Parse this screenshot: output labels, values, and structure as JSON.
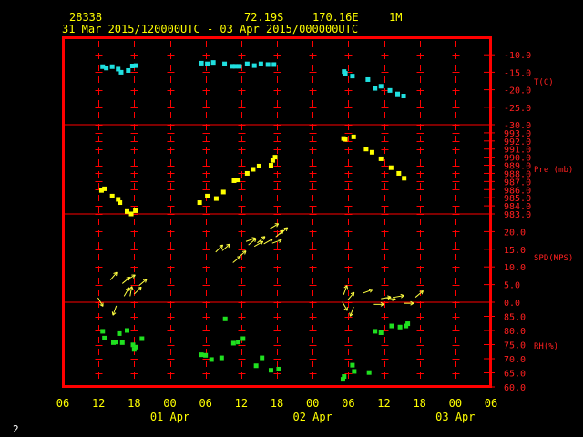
{
  "header": {
    "station_id": "28338",
    "lat": "72.19S",
    "lon": "170.16E",
    "interval": "1M",
    "time_range": "31 Mar 2015/120000UTC - 03 Apr 2015/000000UTC"
  },
  "page_number": "2",
  "colors": {
    "background": "#000000",
    "frame": "#ff0000",
    "grid": "#ff0000",
    "temperature": "#20e0e0",
    "pressure": "#ffff00",
    "wind": "#ffff40",
    "rh": "#20e020",
    "header_text": "#ffff00",
    "axis_text": "#ffff00",
    "right_labels": "#ff2020"
  },
  "chart_data": {
    "type": "scatter",
    "x_units": "hours after 31 Mar 2015 06 UTC",
    "x_range": [
      0,
      72
    ],
    "x_tick_labels": [
      "06",
      "12",
      "18",
      "00",
      "06",
      "12",
      "18",
      "00",
      "06",
      "12",
      "18",
      "00",
      "06"
    ],
    "date_labels": [
      "01 Apr",
      "02 Apr",
      "03 Apr"
    ],
    "panels": [
      {
        "name": "T(C)",
        "ylim": [
          -30,
          -5
        ],
        "ticks": [
          "-10.0",
          "-15.0",
          "-20.0",
          "-25.0",
          "-30.0"
        ],
        "tick_values": [
          -10,
          -15,
          -20,
          -25,
          -30
        ],
        "marker": "square",
        "color": "#20e0e0",
        "points": [
          [
            6.7,
            -13.4
          ],
          [
            7.3,
            -13.8
          ],
          [
            8.3,
            -13.4
          ],
          [
            9.3,
            -14.1
          ],
          [
            9.8,
            -15.0
          ],
          [
            11.0,
            -14.5
          ],
          [
            11.7,
            -13.2
          ],
          [
            12.3,
            -13.1
          ],
          [
            23.3,
            -12.4
          ],
          [
            24.3,
            -12.6
          ],
          [
            25.3,
            -12.2
          ],
          [
            27.2,
            -12.6
          ],
          [
            28.5,
            -13.3
          ],
          [
            29.0,
            -13.3
          ],
          [
            29.7,
            -13.3
          ],
          [
            31.0,
            -12.6
          ],
          [
            32.2,
            -13.1
          ],
          [
            33.3,
            -12.6
          ],
          [
            34.5,
            -12.8
          ],
          [
            35.5,
            -12.8
          ],
          [
            47.3,
            -14.8
          ],
          [
            47.5,
            -15.3
          ],
          [
            48.7,
            -16.1
          ],
          [
            51.3,
            -17.1
          ],
          [
            52.5,
            -19.6
          ],
          [
            53.5,
            -19.0
          ],
          [
            55.0,
            -20.2
          ],
          [
            56.3,
            -21.2
          ],
          [
            57.3,
            -21.8
          ]
        ]
      },
      {
        "name": "Pre (mb)",
        "ylim": [
          983,
          994
        ],
        "ticks": [
          "993.0",
          "992.0",
          "991.0",
          "990.0",
          "989.0",
          "988.0",
          "987.0",
          "986.0",
          "985.0",
          "984.0",
          "983.0"
        ],
        "tick_values": [
          993,
          992,
          991,
          990,
          989,
          988,
          987,
          986,
          985,
          984,
          983
        ],
        "marker": "square",
        "color": "#ffff00",
        "points": [
          [
            6.5,
            985.9
          ],
          [
            7.0,
            986.1
          ],
          [
            8.3,
            985.2
          ],
          [
            9.3,
            984.8
          ],
          [
            9.6,
            984.4
          ],
          [
            10.8,
            983.3
          ],
          [
            11.5,
            983.0
          ],
          [
            12.2,
            983.4
          ],
          [
            23.0,
            984.4
          ],
          [
            24.3,
            985.2
          ],
          [
            25.8,
            984.9
          ],
          [
            27.0,
            985.7
          ],
          [
            28.8,
            987.1
          ],
          [
            29.5,
            987.2
          ],
          [
            31.0,
            988.0
          ],
          [
            32.0,
            988.5
          ],
          [
            33.0,
            988.9
          ],
          [
            35.0,
            989.0
          ],
          [
            35.3,
            989.6
          ],
          [
            35.7,
            990.0
          ],
          [
            47.2,
            992.3
          ],
          [
            47.5,
            992.2
          ],
          [
            48.9,
            992.5
          ],
          [
            51.0,
            991.0
          ],
          [
            52.0,
            990.6
          ],
          [
            53.5,
            989.8
          ],
          [
            55.2,
            988.7
          ],
          [
            56.5,
            988.0
          ],
          [
            57.4,
            987.4
          ]
        ]
      },
      {
        "name": "SPD(MPS)",
        "ylim": [
          0,
          25
        ],
        "ticks": [
          "20.0",
          "15.0",
          "10.0",
          "5.0",
          "0.0"
        ],
        "tick_values": [
          20,
          15,
          10,
          5,
          0
        ],
        "marker": "wind-arrow",
        "color": "#ffff40",
        "arrows": [
          [
            5.9,
            1.3,
            -60
          ],
          [
            8.0,
            6.3,
            50
          ],
          [
            9.0,
            -1.0,
            -110
          ],
          [
            10.0,
            5.3,
            40
          ],
          [
            10.3,
            1.7,
            60
          ],
          [
            10.7,
            6.3,
            30
          ],
          [
            11.3,
            1.7,
            80
          ],
          [
            12.0,
            2.3,
            45
          ],
          [
            12.8,
            4.7,
            40
          ],
          [
            25.7,
            14.2,
            45
          ],
          [
            26.8,
            14.6,
            40
          ],
          [
            28.6,
            11.2,
            40
          ],
          [
            29.5,
            12.7,
            40
          ],
          [
            30.8,
            17.2,
            20
          ],
          [
            31.2,
            16.2,
            40
          ],
          [
            32.2,
            15.8,
            30
          ],
          [
            32.7,
            16.8,
            40
          ],
          [
            33.8,
            16.5,
            30
          ],
          [
            34.8,
            20.8,
            30
          ],
          [
            35.2,
            16.7,
            20
          ],
          [
            35.8,
            18.5,
            40
          ],
          [
            36.5,
            19.3,
            40
          ],
          [
            47.0,
            0.1,
            -60
          ],
          [
            47.2,
            2.1,
            70
          ],
          [
            47.9,
            0.6,
            50
          ],
          [
            48.9,
            -1.3,
            -110
          ],
          [
            50.5,
            2.6,
            20
          ],
          [
            52.3,
            -0.6,
            0
          ],
          [
            53.5,
            1.0,
            10
          ],
          [
            54.3,
            1.3,
            -10
          ],
          [
            55.7,
            1.4,
            10
          ],
          [
            57.3,
            -0.3,
            0
          ],
          [
            59.3,
            1.4,
            40
          ]
        ]
      },
      {
        "name": "RH(%)",
        "ylim": [
          60,
          90
        ],
        "ticks": [
          "85.0",
          "80.0",
          "75.0",
          "70.0",
          "65.0",
          "60.0"
        ],
        "tick_values": [
          85,
          80,
          75,
          70,
          65,
          60
        ],
        "marker": "square",
        "color": "#20e020",
        "points": [
          [
            6.7,
            79.7
          ],
          [
            7.0,
            77.3
          ],
          [
            8.5,
            75.7
          ],
          [
            8.9,
            75.9
          ],
          [
            9.5,
            78.9
          ],
          [
            10.0,
            75.7
          ],
          [
            10.8,
            80.0
          ],
          [
            11.8,
            74.9
          ],
          [
            12.0,
            73.3
          ],
          [
            12.3,
            74.1
          ],
          [
            13.3,
            77.1
          ],
          [
            23.3,
            71.4
          ],
          [
            24.0,
            71.2
          ],
          [
            25.0,
            69.7
          ],
          [
            26.7,
            70.3
          ],
          [
            27.3,
            84.1
          ],
          [
            28.7,
            75.5
          ],
          [
            29.5,
            75.9
          ],
          [
            30.3,
            77.1
          ],
          [
            32.5,
            67.5
          ],
          [
            33.5,
            70.3
          ],
          [
            35.0,
            65.9
          ],
          [
            36.3,
            66.3
          ],
          [
            47.1,
            62.7
          ],
          [
            47.3,
            63.7
          ],
          [
            48.7,
            67.7
          ],
          [
            49.0,
            65.5
          ],
          [
            51.5,
            65.1
          ],
          [
            52.5,
            79.7
          ],
          [
            53.5,
            79.2
          ],
          [
            55.3,
            81.6
          ],
          [
            56.7,
            81.2
          ],
          [
            57.7,
            81.6
          ],
          [
            58.0,
            82.4
          ]
        ]
      }
    ]
  }
}
